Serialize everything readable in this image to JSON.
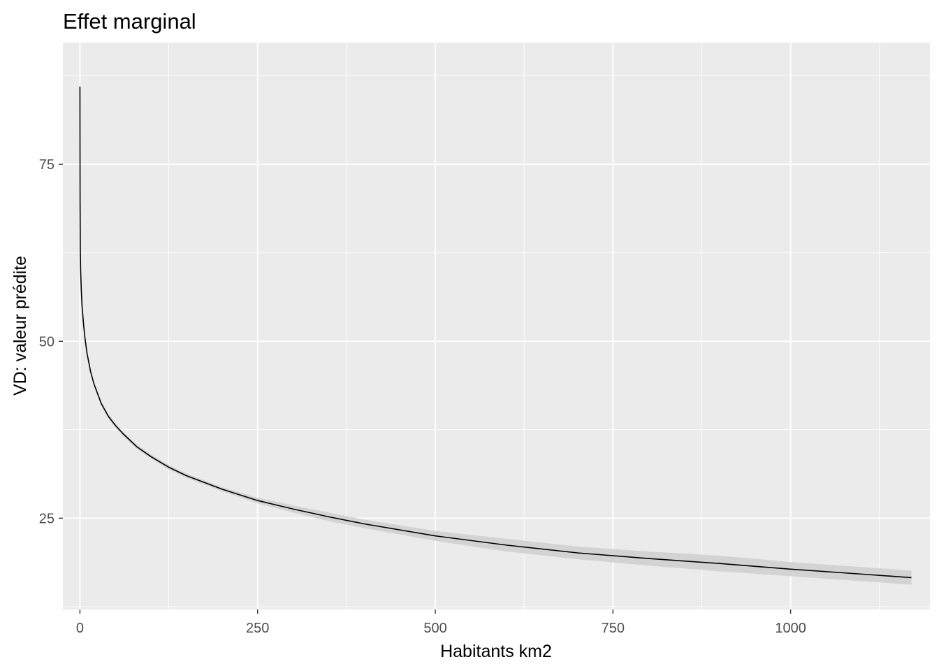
{
  "chart_data": {
    "type": "line",
    "title": "Effet marginal",
    "xlabel": "Habitants km2",
    "ylabel": "VD: valeur prédite",
    "xlim": [
      -24,
      1196
    ],
    "ylim": [
      12.1,
      92.2
    ],
    "x_ticks": [
      0,
      250,
      500,
      750,
      1000
    ],
    "x_tick_labels": [
      "0",
      "250",
      "500",
      "750",
      "1000"
    ],
    "y_ticks": [
      25,
      50,
      75
    ],
    "y_tick_labels": [
      "25",
      "50",
      "75"
    ],
    "grid": true,
    "legend": "none",
    "colors": {
      "panel_background": "#ebebeb",
      "grid": "#ffffff",
      "line": "#000000",
      "ribbon": "#d3d3d3"
    },
    "series": [
      {
        "x": [
          0,
          0.2,
          0.5,
          1,
          2,
          3,
          5,
          7,
          10,
          15,
          20,
          30,
          40,
          50,
          60,
          80,
          100,
          125,
          150,
          200,
          250,
          300,
          350,
          400,
          500,
          600,
          700,
          800,
          900,
          1000,
          1100,
          1170
        ],
        "y": [
          86,
          70,
          63,
          60,
          57,
          55,
          52.5,
          50.5,
          48.3,
          45.7,
          43.9,
          41.2,
          39.4,
          38.1,
          37,
          35.1,
          33.7,
          32.2,
          31,
          29.1,
          27.5,
          26.3,
          25.2,
          24.2,
          22.5,
          21.2,
          20.1,
          19.3,
          18.6,
          17.8,
          17.1,
          16.6
        ],
        "ci_low": [
          84,
          68.5,
          62,
          59.3,
          56.4,
          54.5,
          52.1,
          50.2,
          48,
          45.4,
          43.6,
          40.9,
          39.1,
          37.8,
          36.7,
          34.8,
          33.4,
          31.9,
          30.7,
          28.8,
          27.1,
          25.8,
          24.6,
          23.6,
          21.8,
          20.3,
          19.2,
          18.3,
          17.5,
          16.8,
          16.1,
          15.6
        ],
        "ci_high": [
          88,
          71.5,
          64,
          60.7,
          57.6,
          55.5,
          52.9,
          50.8,
          48.6,
          46,
          44.2,
          41.5,
          39.7,
          38.4,
          37.3,
          35.4,
          34,
          32.5,
          31.3,
          29.4,
          27.9,
          26.8,
          25.8,
          24.8,
          23.2,
          22.1,
          21,
          20.3,
          19.7,
          18.8,
          18.1,
          17.6
        ]
      }
    ]
  }
}
